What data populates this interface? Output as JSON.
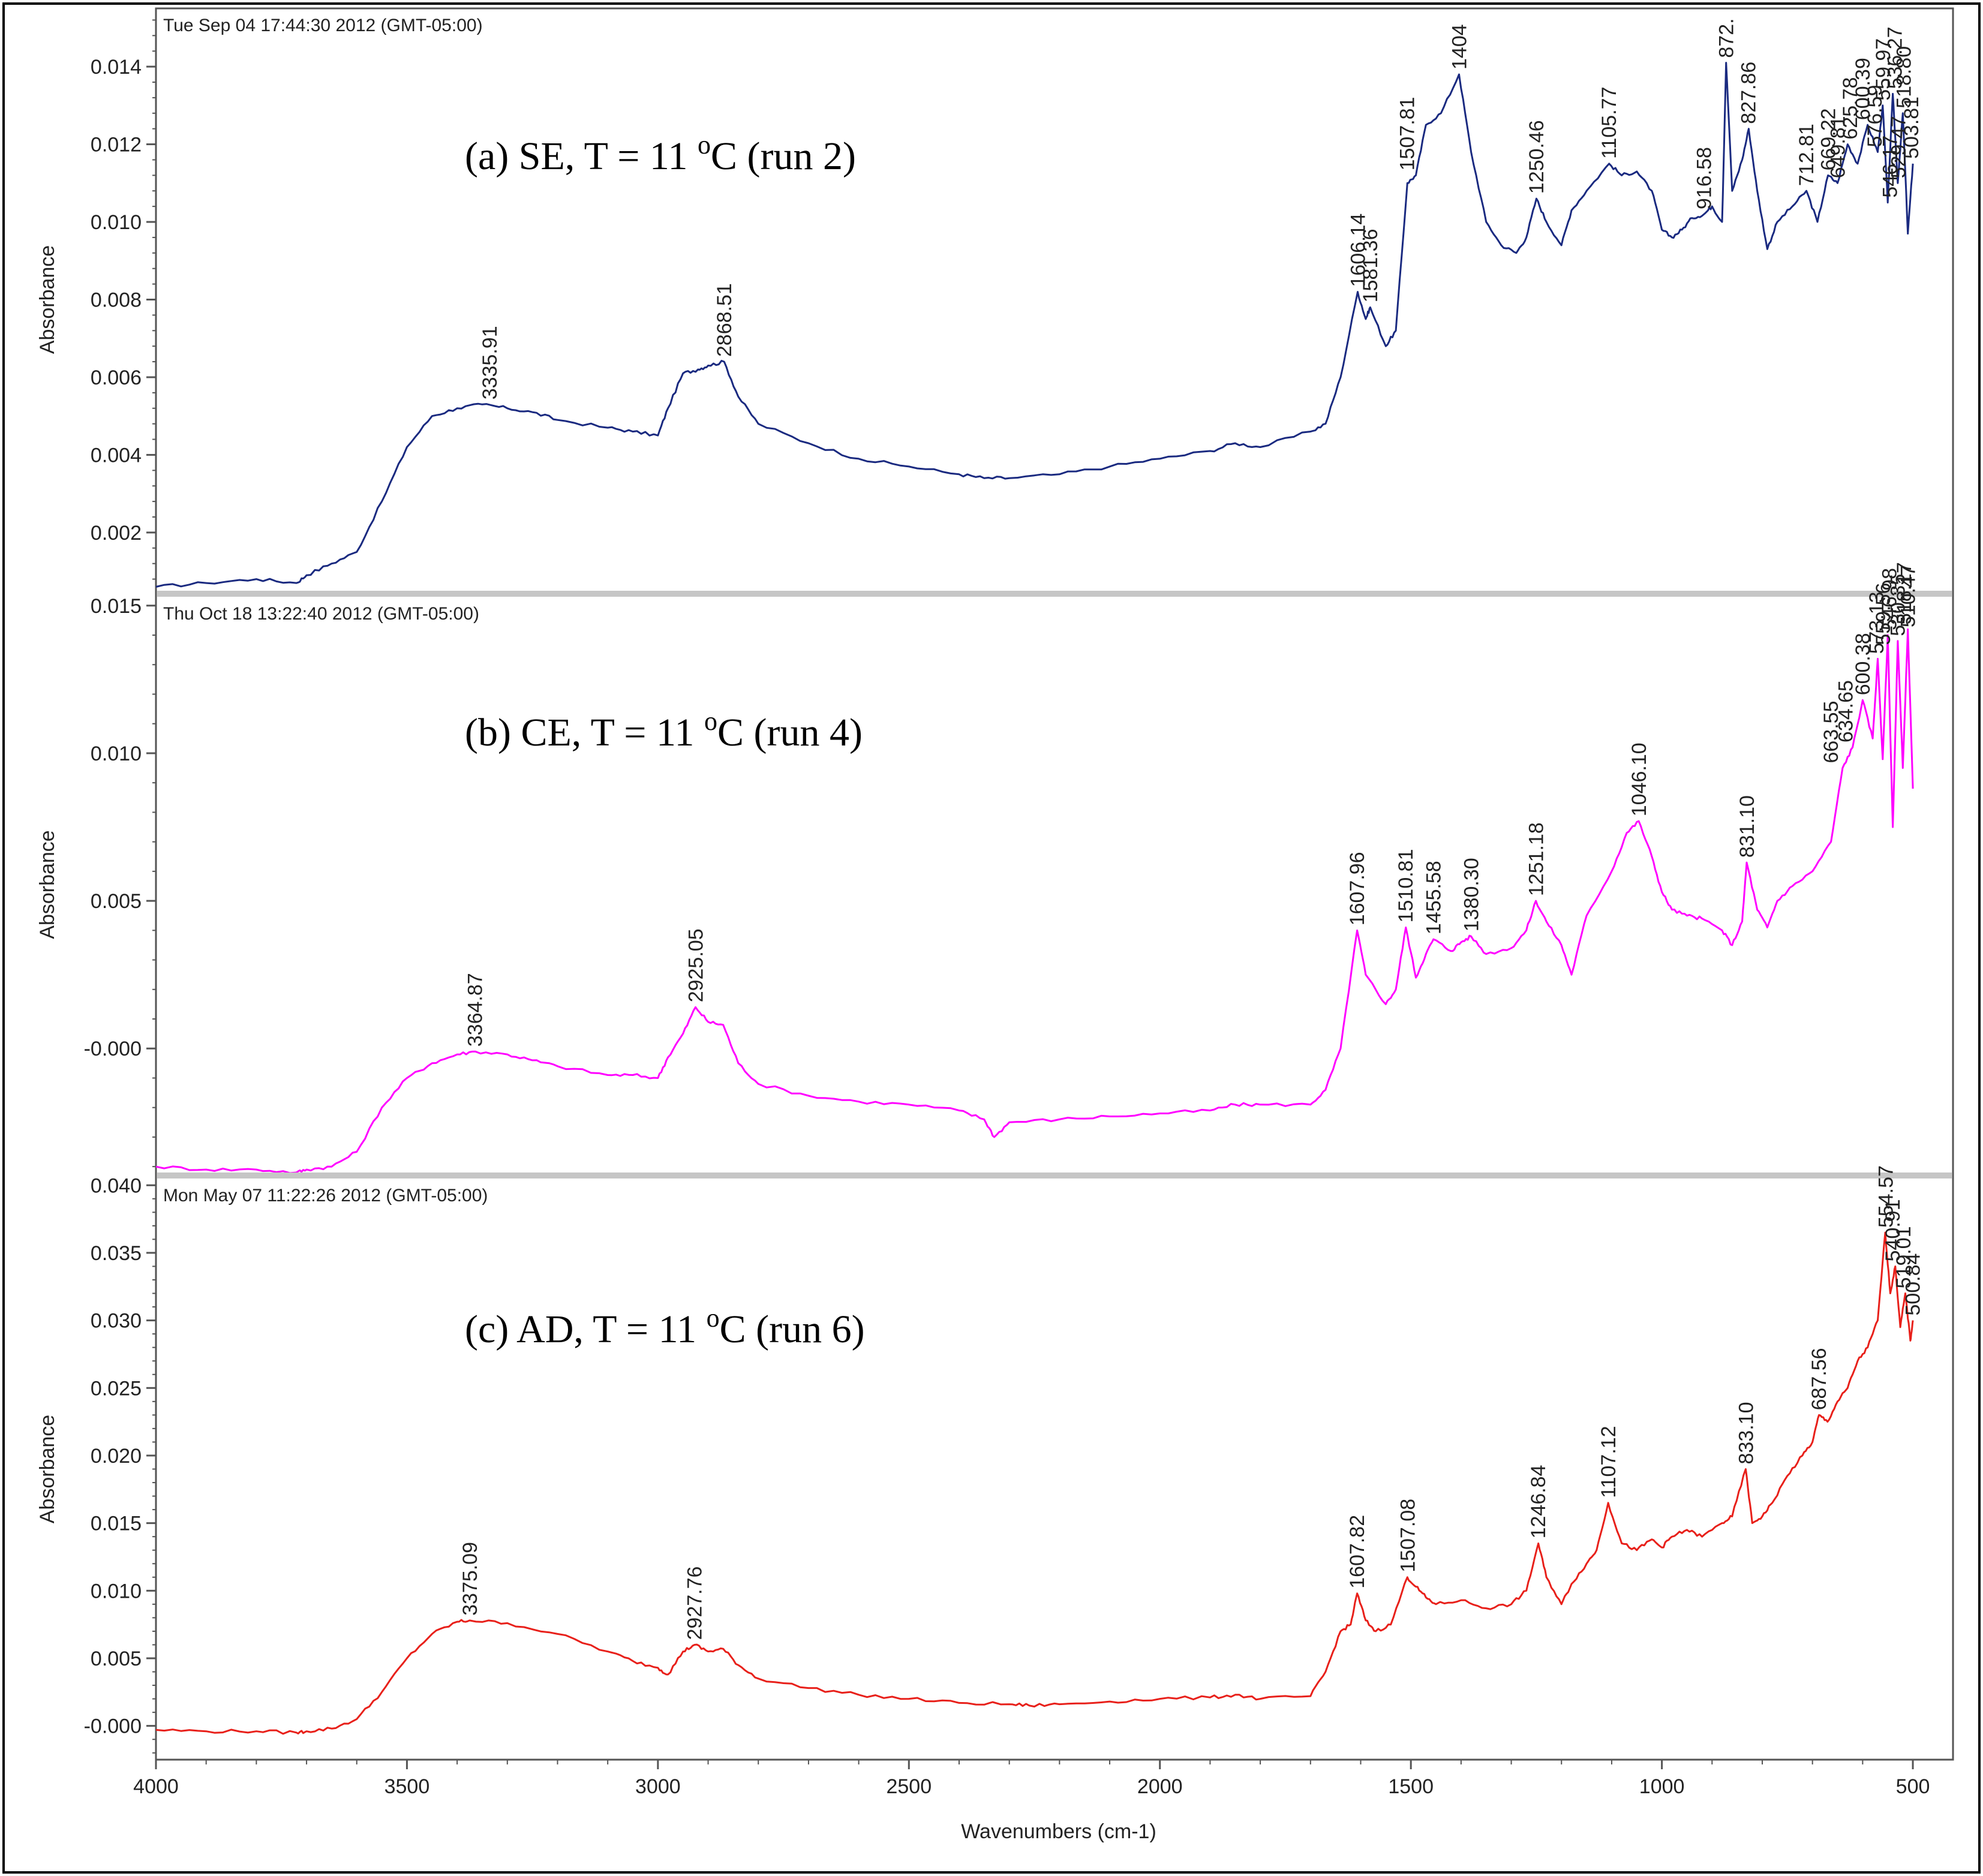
{
  "figure": {
    "xlabel": "Wavenumbers (cm-1)",
    "x_ticks": [
      "4000",
      "3500",
      "3000",
      "2500",
      "2000",
      "1500",
      "1000",
      "500"
    ]
  },
  "chart_data": [
    {
      "type": "line",
      "timestamp": "Tue Sep 04 17:44:30 2012 (GMT-05:00)",
      "title_main": "(a)  SE,  T = 11 ",
      "title_unit": "C  (run 2)",
      "superscript": "o",
      "ylabel": "Absorbance",
      "ylim": [
        0.0005,
        0.0155
      ],
      "yticks": [
        0.002,
        0.004,
        0.006,
        0.008,
        0.01,
        0.012,
        0.014
      ],
      "ytick_labels": [
        "0.002",
        "0.004",
        "0.006",
        "0.008",
        "0.010",
        "0.012",
        "0.014"
      ],
      "color": "#1a2a80",
      "x": [
        4000,
        3900,
        3800,
        3720,
        3700,
        3650,
        3600,
        3550,
        3500,
        3450,
        3400,
        3350,
        3300,
        3250,
        3200,
        3100,
        3050,
        3000,
        2980,
        2950,
        2920,
        2900,
        2868,
        2840,
        2800,
        2700,
        2600,
        2500,
        2400,
        2350,
        2300,
        2200,
        2100,
        2000,
        1900,
        1850,
        1800,
        1700,
        1670,
        1640,
        1606,
        1590,
        1581,
        1550,
        1530,
        1507,
        1490,
        1470,
        1440,
        1404,
        1380,
        1350,
        1320,
        1290,
        1270,
        1250,
        1230,
        1200,
        1180,
        1150,
        1105,
        1080,
        1050,
        1020,
        1000,
        980,
        960,
        940,
        916,
        900,
        880,
        872,
        860,
        840,
        827,
        810,
        790,
        770,
        740,
        712,
        690,
        669,
        650,
        630,
        610,
        590,
        570,
        560,
        550,
        540,
        530,
        520,
        510,
        500
      ],
      "y": [
        0.0006,
        0.0007,
        0.0008,
        0.0007,
        0.0009,
        0.0012,
        0.0015,
        0.0028,
        0.0042,
        0.005,
        0.0052,
        0.0053,
        0.0052,
        0.0051,
        0.0049,
        0.0047,
        0.0046,
        0.0045,
        0.0052,
        0.0061,
        0.0062,
        0.0063,
        0.0064,
        0.0055,
        0.0048,
        0.0043,
        0.0039,
        0.0037,
        0.0035,
        0.0034,
        0.0034,
        0.0035,
        0.0037,
        0.0039,
        0.0041,
        0.0043,
        0.0042,
        0.0046,
        0.0048,
        0.006,
        0.0082,
        0.0075,
        0.0078,
        0.0068,
        0.0072,
        0.011,
        0.0112,
        0.0125,
        0.0128,
        0.0138,
        0.0118,
        0.01,
        0.0094,
        0.0092,
        0.0096,
        0.0106,
        0.01,
        0.0094,
        0.0103,
        0.0108,
        0.0115,
        0.0112,
        0.0113,
        0.0108,
        0.0098,
        0.0096,
        0.0098,
        0.0101,
        0.0102,
        0.0104,
        0.01,
        0.0141,
        0.0108,
        0.0116,
        0.0124,
        0.0108,
        0.0093,
        0.01,
        0.0104,
        0.0108,
        0.01,
        0.0112,
        0.011,
        0.012,
        0.0115,
        0.0125,
        0.0118,
        0.013,
        0.0105,
        0.0133,
        0.011,
        0.0128,
        0.0097,
        0.0115
      ],
      "peaks": [
        {
          "x": 3335.91,
          "y": 0.0053,
          "label": "3335.91"
        },
        {
          "x": 2868.51,
          "y": 0.0064,
          "label": "2868.51"
        },
        {
          "x": 1606.14,
          "y": 0.0082,
          "label": "1606.14"
        },
        {
          "x": 1581.36,
          "y": 0.0078,
          "label": "1581.36"
        },
        {
          "x": 1507.81,
          "y": 0.0112,
          "label": "1507.81"
        },
        {
          "x": 1404,
          "y": 0.0138,
          "label": "1404"
        },
        {
          "x": 1250.46,
          "y": 0.0106,
          "label": "1250.46"
        },
        {
          "x": 1105.77,
          "y": 0.0115,
          "label": "1105.77"
        },
        {
          "x": 916.58,
          "y": 0.0102,
          "label": "916.58"
        },
        {
          "x": 872,
          "y": 0.0141,
          "label": "872."
        },
        {
          "x": 827.86,
          "y": 0.0124,
          "label": "827.86"
        },
        {
          "x": 712.81,
          "y": 0.0108,
          "label": "712.81"
        },
        {
          "x": 669.22,
          "y": 0.0112,
          "label": "669.22"
        },
        {
          "x": 649.81,
          "y": 0.011,
          "label": "649.81"
        },
        {
          "x": 625.78,
          "y": 0.012,
          "label": "625.78"
        },
        {
          "x": 600.39,
          "y": 0.0125,
          "label": "600.39"
        },
        {
          "x": 576.59,
          "y": 0.0118,
          "label": "576.59"
        },
        {
          "x": 559.97,
          "y": 0.013,
          "label": "559.97"
        },
        {
          "x": 546.17,
          "y": 0.0105,
          "label": "546.17"
        },
        {
          "x": 536.27,
          "y": 0.0133,
          "label": "536.27"
        },
        {
          "x": 529.47,
          "y": 0.011,
          "label": "529.47"
        },
        {
          "x": 518.8,
          "y": 0.0128,
          "label": "518.80"
        },
        {
          "x": 503.81,
          "y": 0.0115,
          "label": "503.81"
        }
      ]
    },
    {
      "type": "line",
      "timestamp": "Thu Oct 18 13:22:40 2012 (GMT-05:00)",
      "title_main": "(b)  CE,  T = 11 ",
      "title_unit": "C (run 4)",
      "superscript": "o",
      "ylabel": "Absorbance",
      "ylim": [
        -0.0042,
        0.0153
      ],
      "yticks": [
        0.0,
        0.005,
        0.01,
        0.015
      ],
      "ytick_labels": [
        "-0.000",
        "0.005",
        "0.010",
        "0.015"
      ],
      "color": "#ff00ff",
      "x": [
        4000,
        3900,
        3800,
        3720,
        3700,
        3650,
        3600,
        3550,
        3500,
        3450,
        3400,
        3364,
        3300,
        3250,
        3200,
        3100,
        3050,
        3000,
        2980,
        2950,
        2925,
        2900,
        2870,
        2840,
        2800,
        2700,
        2600,
        2500,
        2400,
        2350,
        2330,
        2300,
        2200,
        2100,
        2000,
        1900,
        1850,
        1800,
        1700,
        1670,
        1640,
        1607,
        1590,
        1550,
        1530,
        1510,
        1490,
        1470,
        1455,
        1420,
        1400,
        1380,
        1350,
        1300,
        1270,
        1251,
        1230,
        1200,
        1180,
        1150,
        1100,
        1070,
        1046,
        1020,
        1000,
        980,
        950,
        920,
        880,
        860,
        840,
        831,
        810,
        790,
        770,
        740,
        700,
        663,
        640,
        620,
        600,
        580,
        570,
        560,
        550,
        540,
        530,
        520,
        510,
        500
      ],
      "y": [
        -0.004,
        -0.0041,
        -0.0041,
        -0.0042,
        -0.0041,
        -0.004,
        -0.0035,
        -0.002,
        -0.001,
        -0.0005,
        -0.0002,
        -0.0001,
        -0.0002,
        -0.0004,
        -0.0006,
        -0.0009,
        -0.0009,
        -0.001,
        -0.0003,
        0.0005,
        0.0014,
        0.0009,
        0.0008,
        -0.0005,
        -0.0012,
        -0.0016,
        -0.0018,
        -0.0019,
        -0.0021,
        -0.0024,
        -0.003,
        -0.0025,
        -0.0024,
        -0.0023,
        -0.0022,
        -0.0021,
        -0.0019,
        -0.0019,
        -0.0019,
        -0.0014,
        0.0,
        0.004,
        0.0025,
        0.0015,
        0.002,
        0.0041,
        0.0024,
        0.0032,
        0.0037,
        0.0033,
        0.0036,
        0.0038,
        0.0032,
        0.0034,
        0.004,
        0.005,
        0.0043,
        0.0035,
        0.0025,
        0.0045,
        0.006,
        0.0073,
        0.0077,
        0.0065,
        0.0053,
        0.0047,
        0.0045,
        0.0044,
        0.004,
        0.0035,
        0.0043,
        0.0063,
        0.0047,
        0.0041,
        0.005,
        0.0055,
        0.006,
        0.007,
        0.0095,
        0.0102,
        0.0118,
        0.0105,
        0.0132,
        0.0098,
        0.014,
        0.0075,
        0.0138,
        0.0095,
        0.0142,
        0.0088
      ],
      "peaks": [
        {
          "x": 3364.87,
          "y": -0.0001,
          "label": "3364.87"
        },
        {
          "x": 2925.05,
          "y": 0.0014,
          "label": "2925.05"
        },
        {
          "x": 1607.96,
          "y": 0.004,
          "label": "1607.96"
        },
        {
          "x": 1510.81,
          "y": 0.0041,
          "label": "1510.81"
        },
        {
          "x": 1455.58,
          "y": 0.0037,
          "label": "1455.58"
        },
        {
          "x": 1380.3,
          "y": 0.0038,
          "label": "1380.30"
        },
        {
          "x": 1251.18,
          "y": 0.005,
          "label": "1251.18"
        },
        {
          "x": 1046.1,
          "y": 0.0077,
          "label": "1046.10"
        },
        {
          "x": 831.1,
          "y": 0.0063,
          "label": "831.10"
        },
        {
          "x": 663.55,
          "y": 0.0095,
          "label": "663.55"
        },
        {
          "x": 634.65,
          "y": 0.0102,
          "label": "634.65"
        },
        {
          "x": 600.38,
          "y": 0.0118,
          "label": "600.38"
        },
        {
          "x": 573.13,
          "y": 0.0132,
          "label": "573.13"
        },
        {
          "x": 559.56,
          "y": 0.0135,
          "label": "559.56"
        },
        {
          "x": 546.98,
          "y": 0.014,
          "label": "546.98"
        },
        {
          "x": 530.35,
          "y": 0.0138,
          "label": "530.35"
        },
        {
          "x": 518.17,
          "y": 0.0142,
          "label": "518.17"
        },
        {
          "x": 510.47,
          "y": 0.0141,
          "label": "510.47"
        }
      ]
    },
    {
      "type": "line",
      "timestamp": "Mon May 07 11:22:26 2012 (GMT-05:00)",
      "title_main": "(c)  AD,  T = 11 ",
      "title_unit": "C  (run 6)",
      "superscript": "o",
      "ylabel": "Absorbance",
      "ylim": [
        -0.0025,
        0.0405
      ],
      "yticks": [
        0.0,
        0.005,
        0.01,
        0.015,
        0.02,
        0.025,
        0.03,
        0.035,
        0.04
      ],
      "ytick_labels": [
        "-0.000",
        "0.005",
        "0.010",
        "0.015",
        "0.020",
        "0.025",
        "0.030",
        "0.035",
        "0.040"
      ],
      "color": "#e8201a",
      "x": [
        4000,
        3900,
        3800,
        3720,
        3700,
        3650,
        3600,
        3550,
        3500,
        3450,
        3400,
        3375,
        3300,
        3200,
        3100,
        3050,
        3000,
        2980,
        2950,
        2927,
        2900,
        2870,
        2840,
        2800,
        2700,
        2600,
        2500,
        2400,
        2300,
        2260,
        2200,
        2100,
        2000,
        1900,
        1850,
        1800,
        1700,
        1670,
        1640,
        1620,
        1607,
        1590,
        1570,
        1540,
        1507,
        1490,
        1470,
        1450,
        1400,
        1350,
        1300,
        1270,
        1246,
        1230,
        1200,
        1180,
        1150,
        1130,
        1107,
        1080,
        1050,
        1020,
        1000,
        980,
        950,
        920,
        880,
        860,
        833,
        820,
        800,
        780,
        750,
        720,
        700,
        687,
        670,
        650,
        630,
        610,
        590,
        570,
        555,
        545,
        535,
        525,
        515,
        505,
        500
      ],
      "y": [
        -0.0003,
        -0.0004,
        -0.0004,
        -0.0005,
        -0.0004,
        -0.0002,
        0.0005,
        0.0025,
        0.005,
        0.0068,
        0.0077,
        0.0078,
        0.0076,
        0.0068,
        0.0055,
        0.0048,
        0.0043,
        0.0038,
        0.0055,
        0.006,
        0.0055,
        0.0057,
        0.0045,
        0.0035,
        0.0028,
        0.0023,
        0.002,
        0.0017,
        0.0016,
        0.0015,
        0.0016,
        0.0018,
        0.002,
        0.0021,
        0.0023,
        0.002,
        0.0022,
        0.004,
        0.007,
        0.0075,
        0.0098,
        0.0078,
        0.007,
        0.0075,
        0.011,
        0.0103,
        0.0095,
        0.009,
        0.0093,
        0.0087,
        0.009,
        0.01,
        0.0135,
        0.011,
        0.009,
        0.0105,
        0.012,
        0.013,
        0.0165,
        0.0135,
        0.013,
        0.0138,
        0.0132,
        0.014,
        0.0145,
        0.014,
        0.015,
        0.0155,
        0.019,
        0.015,
        0.0155,
        0.0165,
        0.0185,
        0.02,
        0.021,
        0.023,
        0.0225,
        0.024,
        0.025,
        0.027,
        0.028,
        0.03,
        0.0365,
        0.032,
        0.034,
        0.0295,
        0.032,
        0.0285,
        0.03
      ],
      "peaks": [
        {
          "x": 3375.09,
          "y": 0.0078,
          "label": "3375.09"
        },
        {
          "x": 2927.76,
          "y": 0.006,
          "label": "2927.76"
        },
        {
          "x": 1607.82,
          "y": 0.0098,
          "label": "1607.82"
        },
        {
          "x": 1507.08,
          "y": 0.011,
          "label": "1507.08"
        },
        {
          "x": 1246.84,
          "y": 0.0135,
          "label": "1246.84"
        },
        {
          "x": 1107.12,
          "y": 0.0165,
          "label": "1107.12"
        },
        {
          "x": 833.1,
          "y": 0.019,
          "label": "833.10"
        },
        {
          "x": 687.56,
          "y": 0.023,
          "label": "687.56"
        },
        {
          "x": 554.57,
          "y": 0.0365,
          "label": "554.57"
        },
        {
          "x": 540.91,
          "y": 0.034,
          "label": "540.91"
        },
        {
          "x": 519.01,
          "y": 0.032,
          "label": "519.01"
        },
        {
          "x": 500.84,
          "y": 0.03,
          "label": "500.84"
        }
      ]
    }
  ]
}
